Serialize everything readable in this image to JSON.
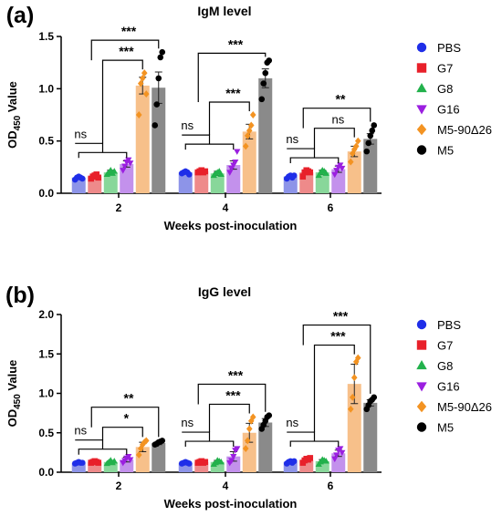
{
  "figure": {
    "legend": {
      "entries": [
        {
          "name": "PBS",
          "color": "#1f2ee8",
          "marker": "circle"
        },
        {
          "name": "G7",
          "color": "#e8202a",
          "marker": "square"
        },
        {
          "name": "G8",
          "color": "#22b14c",
          "marker": "triangle-up"
        },
        {
          "name": "G16",
          "color": "#9b1fe0",
          "marker": "triangle-down"
        },
        {
          "name": "M5-90Δ26",
          "color": "#f39322",
          "marker": "diamond"
        },
        {
          "name": "M5",
          "color": "#000000",
          "marker": "circle"
        }
      ],
      "position": "right"
    },
    "bar_colors": [
      "#8d94e8",
      "#ee8a8a",
      "#88d79a",
      "#c391ec",
      "#f7c08a",
      "#8a8a8a"
    ]
  },
  "chart_data": [
    {
      "type": "bar",
      "panel_label": "(a)",
      "title": "IgM level",
      "xlabel": "Weeks post-inoculation",
      "ylabel_main": "OD",
      "ylabel_sub": "450",
      "ylabel_rest": " Value",
      "categories": [
        "2",
        "4",
        "6"
      ],
      "ylim": [
        0,
        1.5
      ],
      "yticks": [
        "0.0",
        "0.5",
        "1.0",
        "1.5"
      ],
      "grid": false,
      "series": [
        {
          "name": "PBS",
          "values": [
            0.15,
            0.2,
            0.16
          ],
          "errors": [
            0.01,
            0.01,
            0.01
          ]
        },
        {
          "name": "G7",
          "values": [
            0.16,
            0.21,
            0.2
          ],
          "errors": [
            0.01,
            0.01,
            0.02
          ]
        },
        {
          "name": "G8",
          "values": [
            0.2,
            0.19,
            0.2
          ],
          "errors": [
            0.02,
            0.02,
            0.02
          ]
        },
        {
          "name": "G16",
          "values": [
            0.28,
            0.27,
            0.23
          ],
          "errors": [
            0.03,
            0.04,
            0.03
          ]
        },
        {
          "name": "M5-90Δ26",
          "values": [
            1.03,
            0.59,
            0.4
          ],
          "errors": [
            0.08,
            0.07,
            0.05
          ]
        },
        {
          "name": "M5",
          "values": [
            1.01,
            1.1,
            0.52
          ],
          "errors": [
            0.15,
            0.09,
            0.05
          ]
        }
      ],
      "points": [
        [
          [
            0.13,
            0.15,
            0.16,
            0.15,
            0.14
          ],
          [
            0.14,
            0.16,
            0.17,
            0.18,
            0.15
          ],
          [
            0.18,
            0.2,
            0.22,
            0.19,
            0.21
          ],
          [
            0.22,
            0.26,
            0.3,
            0.32,
            0.29
          ],
          [
            0.75,
            1.05,
            1.1,
            1.15,
            0.95
          ],
          [
            0.65,
            0.85,
            1.1,
            1.3,
            1.35
          ]
        ],
        [
          [
            0.19,
            0.2,
            0.21,
            0.2,
            0.18
          ],
          [
            0.2,
            0.21,
            0.22,
            0.2,
            0.21
          ],
          [
            0.17,
            0.19,
            0.2,
            0.21,
            0.18
          ],
          [
            0.2,
            0.24,
            0.27,
            0.3,
            0.4
          ],
          [
            0.45,
            0.55,
            0.6,
            0.65,
            0.75
          ],
          [
            0.9,
            1.05,
            1.15,
            1.25,
            1.27
          ]
        ],
        [
          [
            0.14,
            0.16,
            0.17,
            0.15,
            0.17
          ],
          [
            0.16,
            0.2,
            0.22,
            0.21,
            0.2
          ],
          [
            0.17,
            0.2,
            0.22,
            0.21,
            0.19
          ],
          [
            0.18,
            0.22,
            0.25,
            0.27,
            0.24
          ],
          [
            0.3,
            0.38,
            0.42,
            0.45,
            0.5
          ],
          [
            0.4,
            0.48,
            0.55,
            0.6,
            0.65
          ]
        ]
      ],
      "annotations": {
        "week2": {
          "ns": "ns",
          "top": "***",
          "mid": "***"
        },
        "week4": {
          "ns": "ns",
          "top": "***",
          "mid": "***"
        },
        "week6": {
          "ns": "ns",
          "top": "**",
          "mid": "ns"
        }
      }
    },
    {
      "type": "bar",
      "panel_label": "(b)",
      "title": "IgG level",
      "xlabel": "Weeks post-inoculation",
      "ylabel_main": "OD",
      "ylabel_sub": "450",
      "ylabel_rest": " Value",
      "categories": [
        "2",
        "4",
        "6"
      ],
      "ylim": [
        0,
        2.0
      ],
      "yticks": [
        "0.0",
        "0.5",
        "1.0",
        "1.5",
        "2.0"
      ],
      "grid": false,
      "series": [
        {
          "name": "PBS",
          "values": [
            0.12,
            0.12,
            0.13
          ],
          "errors": [
            0.01,
            0.01,
            0.01
          ]
        },
        {
          "name": "G7",
          "values": [
            0.13,
            0.13,
            0.15
          ],
          "errors": [
            0.01,
            0.01,
            0.02
          ]
        },
        {
          "name": "G8",
          "values": [
            0.13,
            0.13,
            0.14
          ],
          "errors": [
            0.01,
            0.02,
            0.02
          ]
        },
        {
          "name": "G16",
          "values": [
            0.16,
            0.2,
            0.24
          ],
          "errors": [
            0.03,
            0.06,
            0.04
          ]
        },
        {
          "name": "M5-90Δ26",
          "values": [
            0.32,
            0.5,
            1.12
          ],
          "errors": [
            0.06,
            0.12,
            0.25
          ]
        },
        {
          "name": "M5",
          "values": [
            0.37,
            0.63,
            0.88
          ],
          "errors": [
            0.02,
            0.05,
            0.04
          ]
        }
      ],
      "points": [
        [
          [
            0.11,
            0.12,
            0.13,
            0.12,
            0.12
          ],
          [
            0.12,
            0.13,
            0.14,
            0.13,
            0.12
          ],
          [
            0.11,
            0.13,
            0.15,
            0.12,
            0.14
          ],
          [
            0.12,
            0.15,
            0.18,
            0.2,
            0.16
          ],
          [
            0.22,
            0.3,
            0.35,
            0.38,
            0.4
          ],
          [
            0.35,
            0.36,
            0.38,
            0.39,
            0.4
          ]
        ],
        [
          [
            0.11,
            0.12,
            0.13,
            0.12,
            0.11
          ],
          [
            0.12,
            0.13,
            0.14,
            0.12,
            0.13
          ],
          [
            0.1,
            0.12,
            0.15,
            0.14,
            0.13
          ],
          [
            0.12,
            0.15,
            0.2,
            0.28,
            0.3
          ],
          [
            0.3,
            0.4,
            0.55,
            0.65,
            0.7
          ],
          [
            0.55,
            0.6,
            0.65,
            0.7,
            0.72
          ]
        ],
        [
          [
            0.11,
            0.13,
            0.14,
            0.12,
            0.14
          ],
          [
            0.12,
            0.15,
            0.17,
            0.16,
            0.18
          ],
          [
            0.1,
            0.13,
            0.16,
            0.15,
            0.14
          ],
          [
            0.17,
            0.22,
            0.28,
            0.3,
            0.25
          ],
          [
            0.8,
            0.95,
            1.2,
            1.4,
            1.45
          ],
          [
            0.8,
            0.85,
            0.9,
            0.92,
            0.95
          ]
        ]
      ],
      "annotations": {
        "week2": {
          "ns": "ns",
          "top": "**",
          "mid": "*"
        },
        "week4": {
          "ns": "ns",
          "top": "***",
          "mid": "***"
        },
        "week6": {
          "ns": "ns",
          "top": "***",
          "mid": "***"
        }
      }
    }
  ]
}
